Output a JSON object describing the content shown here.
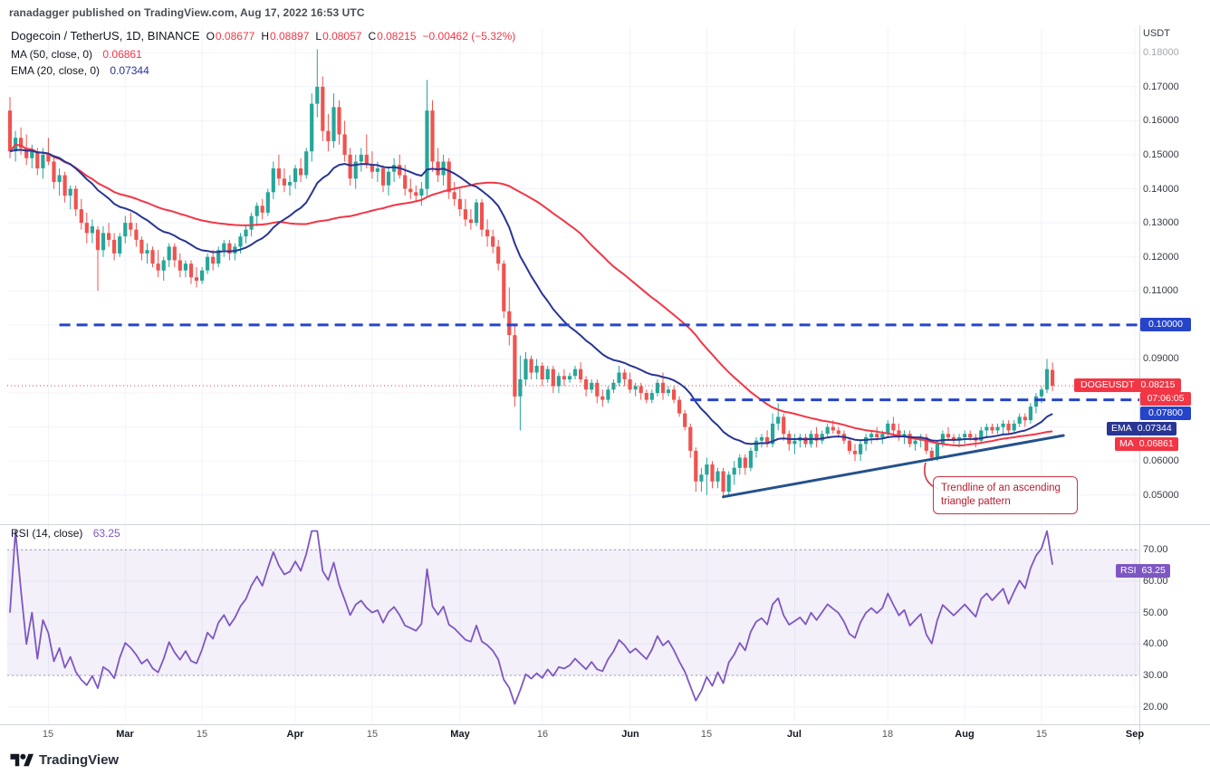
{
  "attribution": "ranadagger published on TradingView.com, Aug 17, 2022 16:53 UTC",
  "header": {
    "symbol_title": "Dogecoin / TetherUS, 1D, BINANCE",
    "ohlc": [
      {
        "label": "O",
        "value": "0.08677"
      },
      {
        "label": "H",
        "value": "0.08897"
      },
      {
        "label": "L",
        "value": "0.08057"
      },
      {
        "label": "C",
        "value": "0.08215"
      }
    ],
    "change": "−0.00462 (−5.32%)",
    "ma_legend": {
      "label": "MA (50, close, 0)",
      "value": "0.06861"
    },
    "ema_legend": {
      "label": "EMA (20, close, 0)",
      "value": "0.07344"
    }
  },
  "rsi_legend": {
    "label": "RSI (14, close)",
    "value": "63.25"
  },
  "price_axis": {
    "unit": "USDT",
    "labels": [
      {
        "text": "0.18000",
        "price": 0.18,
        "faded": true
      },
      {
        "text": "0.17000",
        "price": 0.17
      },
      {
        "text": "0.16000",
        "price": 0.16
      },
      {
        "text": "0.15000",
        "price": 0.15
      },
      {
        "text": "0.14000",
        "price": 0.14
      },
      {
        "text": "0.13000",
        "price": 0.13
      },
      {
        "text": "0.12000",
        "price": 0.12
      },
      {
        "text": "0.11000",
        "price": 0.11
      },
      {
        "text": "0.09000",
        "price": 0.09
      },
      {
        "text": "0.06000",
        "price": 0.06
      },
      {
        "text": "0.05000",
        "price": 0.05
      }
    ]
  },
  "rsi_axis": {
    "labels": [
      {
        "text": "70.00",
        "value": 70
      },
      {
        "text": "60.00",
        "value": 60
      },
      {
        "text": "50.00",
        "value": 50
      },
      {
        "text": "40.00",
        "value": 40
      },
      {
        "text": "30.00",
        "value": 30
      },
      {
        "text": "20.00",
        "value": 20
      }
    ]
  },
  "time_axis": {
    "ticks": [
      {
        "label": "15",
        "day": 7,
        "month": false
      },
      {
        "label": "Mar",
        "day": 21,
        "month": true
      },
      {
        "label": "15",
        "day": 35,
        "month": false
      },
      {
        "label": "Apr",
        "day": 52,
        "month": true
      },
      {
        "label": "15",
        "day": 66,
        "month": false
      },
      {
        "label": "May",
        "day": 82,
        "month": true
      },
      {
        "label": "16",
        "day": 97,
        "month": false
      },
      {
        "label": "Jun",
        "day": 113,
        "month": true
      },
      {
        "label": "15",
        "day": 127,
        "month": false
      },
      {
        "label": "Jul",
        "day": 143,
        "month": true
      },
      {
        "label": "18",
        "day": 160,
        "month": false
      },
      {
        "label": "Aug",
        "day": 174,
        "month": true
      },
      {
        "label": "15",
        "day": 188,
        "month": false
      },
      {
        "label": "Sep",
        "day": 205,
        "month": true
      }
    ]
  },
  "badges": {
    "level_10": {
      "text": "0.10000"
    },
    "symbol_price": {
      "symbol": "DOGEUSDT",
      "price": "0.08215"
    },
    "countdown": "07:06:05",
    "level_78": {
      "text": "0.07800"
    },
    "ema": {
      "label": "EMA",
      "value": "0.07344"
    },
    "ma": {
      "label": "MA",
      "value": "0.06861"
    },
    "rsi": {
      "label": "RSI",
      "value": "63.25"
    }
  },
  "annotation": {
    "text": "Trendline of an ascending triangle pattern"
  },
  "footer": {
    "brand": "TradingView"
  },
  "colors": {
    "up": "#26a69a",
    "down": "#ef5350",
    "ma": "#f23645",
    "ema": "#283593",
    "rsi": "#7e57c2",
    "level_blue": "#2644c9",
    "trend": "#24518c",
    "annotation_red": "#cc3344",
    "grid": "#f0f3fa",
    "separator": "#d1d4dc"
  },
  "chart_data": {
    "type": "candlestick",
    "symbol": "DOGEUSDT",
    "exchange": "BINANCE",
    "timeframe": "1D",
    "start_date": "2022-02-08",
    "end_date": "2022-08-17",
    "title": "Dogecoin / TetherUS, 1D, BINANCE",
    "price_axis_range": [
      0.0425,
      0.1875
    ],
    "rsi_axis_range": [
      15,
      77
    ],
    "total_day_slots": 206,
    "last_ohlc": {
      "open": 0.08677,
      "high": 0.08897,
      "low": 0.08057,
      "close": 0.08215,
      "change": -0.00462,
      "change_pct": -5.32
    },
    "indicators": [
      {
        "type": "sma",
        "period": 50,
        "source": "close",
        "last_value": 0.06861
      },
      {
        "type": "ema",
        "period": 20,
        "source": "close",
        "last_value": 0.07344
      },
      {
        "type": "rsi",
        "period": 14,
        "source": "close",
        "last_value": 63.25,
        "band": [
          30,
          70
        ]
      }
    ],
    "drawings": {
      "horizontal_levels": [
        {
          "price": 0.1,
          "label": "0.10000",
          "from_day": 9,
          "style": "dashed"
        },
        {
          "price": 0.078,
          "label": "0.07800",
          "from_day": 124,
          "style": "dashed"
        }
      ],
      "trendline": {
        "from_day": 130,
        "from_price": 0.0495,
        "to_day": 192,
        "to_price": 0.0675
      },
      "last_price_line": 0.08215
    },
    "candles": [
      [
        0.163,
        0.167,
        0.149,
        0.151
      ],
      [
        0.151,
        0.157,
        0.148,
        0.155
      ],
      [
        0.155,
        0.158,
        0.15,
        0.152
      ],
      [
        0.152,
        0.156,
        0.147,
        0.149
      ],
      [
        0.149,
        0.153,
        0.146,
        0.151
      ],
      [
        0.151,
        0.152,
        0.144,
        0.146
      ],
      [
        0.146,
        0.152,
        0.143,
        0.15
      ],
      [
        0.15,
        0.155,
        0.147,
        0.148
      ],
      [
        0.148,
        0.149,
        0.14,
        0.142
      ],
      [
        0.142,
        0.146,
        0.138,
        0.144
      ],
      [
        0.144,
        0.145,
        0.136,
        0.138
      ],
      [
        0.138,
        0.141,
        0.134,
        0.14
      ],
      [
        0.14,
        0.141,
        0.132,
        0.134
      ],
      [
        0.134,
        0.137,
        0.128,
        0.13
      ],
      [
        0.13,
        0.133,
        0.124,
        0.127
      ],
      [
        0.127,
        0.131,
        0.124,
        0.129
      ],
      [
        0.128,
        0.129,
        0.11,
        0.122
      ],
      [
        0.122,
        0.129,
        0.12,
        0.127
      ],
      [
        0.127,
        0.13,
        0.123,
        0.125
      ],
      [
        0.125,
        0.127,
        0.119,
        0.121
      ],
      [
        0.121,
        0.127,
        0.12,
        0.126
      ],
      [
        0.126,
        0.132,
        0.124,
        0.13
      ],
      [
        0.13,
        0.133,
        0.126,
        0.128
      ],
      [
        0.128,
        0.13,
        0.123,
        0.125
      ],
      [
        0.125,
        0.126,
        0.119,
        0.121
      ],
      [
        0.121,
        0.124,
        0.118,
        0.122
      ],
      [
        0.122,
        0.123,
        0.117,
        0.118
      ],
      [
        0.118,
        0.122,
        0.114,
        0.116
      ],
      [
        0.116,
        0.12,
        0.113,
        0.119
      ],
      [
        0.119,
        0.124,
        0.117,
        0.123
      ],
      [
        0.123,
        0.124,
        0.117,
        0.119
      ],
      [
        0.119,
        0.121,
        0.114,
        0.116
      ],
      [
        0.116,
        0.119,
        0.114,
        0.118
      ],
      [
        0.118,
        0.119,
        0.112,
        0.114
      ],
      [
        0.114,
        0.117,
        0.111,
        0.113
      ],
      [
        0.113,
        0.117,
        0.112,
        0.116
      ],
      [
        0.116,
        0.121,
        0.115,
        0.12
      ],
      [
        0.12,
        0.122,
        0.116,
        0.118
      ],
      [
        0.118,
        0.123,
        0.117,
        0.122
      ],
      [
        0.122,
        0.125,
        0.12,
        0.124
      ],
      [
        0.124,
        0.125,
        0.119,
        0.121
      ],
      [
        0.121,
        0.124,
        0.119,
        0.123
      ],
      [
        0.123,
        0.127,
        0.121,
        0.126
      ],
      [
        0.126,
        0.129,
        0.124,
        0.128
      ],
      [
        0.128,
        0.133,
        0.126,
        0.132
      ],
      [
        0.132,
        0.136,
        0.129,
        0.135
      ],
      [
        0.135,
        0.137,
        0.131,
        0.133
      ],
      [
        0.133,
        0.14,
        0.132,
        0.139
      ],
      [
        0.139,
        0.148,
        0.137,
        0.146
      ],
      [
        0.146,
        0.15,
        0.141,
        0.143
      ],
      [
        0.143,
        0.146,
        0.139,
        0.141
      ],
      [
        0.141,
        0.144,
        0.138,
        0.142
      ],
      [
        0.142,
        0.147,
        0.14,
        0.146
      ],
      [
        0.146,
        0.149,
        0.142,
        0.144
      ],
      [
        0.144,
        0.152,
        0.143,
        0.151
      ],
      [
        0.151,
        0.168,
        0.148,
        0.165
      ],
      [
        0.165,
        0.181,
        0.161,
        0.17
      ],
      [
        0.17,
        0.173,
        0.154,
        0.157
      ],
      [
        0.157,
        0.162,
        0.151,
        0.154
      ],
      [
        0.154,
        0.168,
        0.152,
        0.164
      ],
      [
        0.164,
        0.166,
        0.153,
        0.156
      ],
      [
        0.156,
        0.16,
        0.148,
        0.15
      ],
      [
        0.15,
        0.152,
        0.141,
        0.143
      ],
      [
        0.143,
        0.15,
        0.14,
        0.148
      ],
      [
        0.148,
        0.152,
        0.145,
        0.15
      ],
      [
        0.15,
        0.156,
        0.146,
        0.147
      ],
      [
        0.147,
        0.151,
        0.143,
        0.145
      ],
      [
        0.145,
        0.148,
        0.142,
        0.146
      ],
      [
        0.146,
        0.147,
        0.139,
        0.141
      ],
      [
        0.141,
        0.146,
        0.138,
        0.145
      ],
      [
        0.145,
        0.149,
        0.142,
        0.147
      ],
      [
        0.147,
        0.15,
        0.143,
        0.144
      ],
      [
        0.144,
        0.147,
        0.138,
        0.14
      ],
      [
        0.14,
        0.143,
        0.137,
        0.139
      ],
      [
        0.139,
        0.141,
        0.136,
        0.138
      ],
      [
        0.138,
        0.142,
        0.135,
        0.14
      ],
      [
        0.14,
        0.172,
        0.138,
        0.163
      ],
      [
        0.163,
        0.166,
        0.145,
        0.148
      ],
      [
        0.148,
        0.152,
        0.142,
        0.144
      ],
      [
        0.144,
        0.15,
        0.141,
        0.148
      ],
      [
        0.148,
        0.149,
        0.137,
        0.139
      ],
      [
        0.139,
        0.142,
        0.135,
        0.137
      ],
      [
        0.137,
        0.14,
        0.132,
        0.134
      ],
      [
        0.134,
        0.137,
        0.129,
        0.131
      ],
      [
        0.131,
        0.134,
        0.128,
        0.13
      ],
      [
        0.13,
        0.137,
        0.129,
        0.136
      ],
      [
        0.136,
        0.137,
        0.126,
        0.128
      ],
      [
        0.128,
        0.131,
        0.123,
        0.126
      ],
      [
        0.126,
        0.128,
        0.121,
        0.123
      ],
      [
        0.123,
        0.125,
        0.116,
        0.118
      ],
      [
        0.118,
        0.119,
        0.102,
        0.104
      ],
      [
        0.104,
        0.111,
        0.094,
        0.097
      ],
      [
        0.097,
        0.1,
        0.076,
        0.079
      ],
      [
        0.079,
        0.091,
        0.069,
        0.084
      ],
      [
        0.084,
        0.092,
        0.082,
        0.09
      ],
      [
        0.09,
        0.091,
        0.084,
        0.086
      ],
      [
        0.086,
        0.09,
        0.084,
        0.088
      ],
      [
        0.088,
        0.089,
        0.082,
        0.084
      ],
      [
        0.084,
        0.088,
        0.083,
        0.087
      ],
      [
        0.087,
        0.088,
        0.08,
        0.082
      ],
      [
        0.082,
        0.086,
        0.08,
        0.085
      ],
      [
        0.085,
        0.087,
        0.082,
        0.084
      ],
      [
        0.084,
        0.086,
        0.083,
        0.085
      ],
      [
        0.085,
        0.088,
        0.084,
        0.087
      ],
      [
        0.087,
        0.089,
        0.083,
        0.084
      ],
      [
        0.084,
        0.085,
        0.079,
        0.081
      ],
      [
        0.081,
        0.084,
        0.08,
        0.083
      ],
      [
        0.083,
        0.084,
        0.077,
        0.079
      ],
      [
        0.079,
        0.081,
        0.076,
        0.078
      ],
      [
        0.078,
        0.082,
        0.077,
        0.081
      ],
      [
        0.081,
        0.084,
        0.08,
        0.083
      ],
      [
        0.083,
        0.088,
        0.082,
        0.086
      ],
      [
        0.086,
        0.087,
        0.082,
        0.084
      ],
      [
        0.084,
        0.086,
        0.08,
        0.081
      ],
      [
        0.081,
        0.083,
        0.079,
        0.082
      ],
      [
        0.082,
        0.083,
        0.078,
        0.08
      ],
      [
        0.08,
        0.081,
        0.077,
        0.078
      ],
      [
        0.078,
        0.081,
        0.077,
        0.08
      ],
      [
        0.08,
        0.084,
        0.079,
        0.083
      ],
      [
        0.083,
        0.086,
        0.078,
        0.08
      ],
      [
        0.08,
        0.082,
        0.079,
        0.081
      ],
      [
        0.081,
        0.082,
        0.077,
        0.078
      ],
      [
        0.078,
        0.079,
        0.073,
        0.074
      ],
      [
        0.074,
        0.075,
        0.069,
        0.07
      ],
      [
        0.07,
        0.071,
        0.061,
        0.063
      ],
      [
        0.063,
        0.064,
        0.051,
        0.054
      ],
      [
        0.054,
        0.058,
        0.051,
        0.056
      ],
      [
        0.056,
        0.061,
        0.05,
        0.059
      ],
      [
        0.059,
        0.06,
        0.052,
        0.054
      ],
      [
        0.054,
        0.058,
        0.052,
        0.057
      ],
      [
        0.057,
        0.058,
        0.049,
        0.051
      ],
      [
        0.051,
        0.057,
        0.05,
        0.056
      ],
      [
        0.056,
        0.06,
        0.053,
        0.058
      ],
      [
        0.058,
        0.062,
        0.056,
        0.061
      ],
      [
        0.061,
        0.062,
        0.056,
        0.058
      ],
      [
        0.058,
        0.064,
        0.057,
        0.063
      ],
      [
        0.063,
        0.067,
        0.061,
        0.066
      ],
      [
        0.066,
        0.068,
        0.064,
        0.067
      ],
      [
        0.067,
        0.069,
        0.064,
        0.065
      ],
      [
        0.065,
        0.074,
        0.064,
        0.071
      ],
      [
        0.071,
        0.077,
        0.069,
        0.073
      ],
      [
        0.073,
        0.074,
        0.066,
        0.068
      ],
      [
        0.068,
        0.069,
        0.063,
        0.065
      ],
      [
        0.065,
        0.068,
        0.062,
        0.066
      ],
      [
        0.066,
        0.068,
        0.064,
        0.067
      ],
      [
        0.067,
        0.068,
        0.064,
        0.065
      ],
      [
        0.065,
        0.069,
        0.064,
        0.068
      ],
      [
        0.068,
        0.07,
        0.064,
        0.066
      ],
      [
        0.066,
        0.069,
        0.065,
        0.068
      ],
      [
        0.068,
        0.071,
        0.067,
        0.07
      ],
      [
        0.07,
        0.072,
        0.068,
        0.069
      ],
      [
        0.069,
        0.07,
        0.067,
        0.068
      ],
      [
        0.068,
        0.069,
        0.065,
        0.066
      ],
      [
        0.066,
        0.067,
        0.062,
        0.063
      ],
      [
        0.063,
        0.065,
        0.06,
        0.062
      ],
      [
        0.062,
        0.066,
        0.06,
        0.065
      ],
      [
        0.065,
        0.068,
        0.063,
        0.067
      ],
      [
        0.067,
        0.069,
        0.065,
        0.068
      ],
      [
        0.068,
        0.07,
        0.066,
        0.067
      ],
      [
        0.067,
        0.069,
        0.065,
        0.068
      ],
      [
        0.068,
        0.072,
        0.067,
        0.071
      ],
      [
        0.071,
        0.073,
        0.068,
        0.069
      ],
      [
        0.069,
        0.071,
        0.066,
        0.067
      ],
      [
        0.067,
        0.069,
        0.065,
        0.068
      ],
      [
        0.068,
        0.069,
        0.064,
        0.065
      ],
      [
        0.065,
        0.067,
        0.063,
        0.066
      ],
      [
        0.066,
        0.068,
        0.064,
        0.067
      ],
      [
        0.067,
        0.068,
        0.062,
        0.063
      ],
      [
        0.063,
        0.064,
        0.06,
        0.061
      ],
      [
        0.061,
        0.066,
        0.06,
        0.065
      ],
      [
        0.065,
        0.069,
        0.064,
        0.068
      ],
      [
        0.068,
        0.07,
        0.066,
        0.067
      ],
      [
        0.067,
        0.068,
        0.065,
        0.066
      ],
      [
        0.066,
        0.068,
        0.064,
        0.067
      ],
      [
        0.067,
        0.069,
        0.065,
        0.068
      ],
      [
        0.068,
        0.069,
        0.066,
        0.067
      ],
      [
        0.067,
        0.068,
        0.064,
        0.066
      ],
      [
        0.066,
        0.07,
        0.065,
        0.069
      ],
      [
        0.069,
        0.071,
        0.067,
        0.07
      ],
      [
        0.07,
        0.071,
        0.068,
        0.069
      ],
      [
        0.069,
        0.071,
        0.068,
        0.07
      ],
      [
        0.07,
        0.072,
        0.068,
        0.071
      ],
      [
        0.071,
        0.072,
        0.068,
        0.069
      ],
      [
        0.069,
        0.072,
        0.068,
        0.071
      ],
      [
        0.071,
        0.074,
        0.07,
        0.073
      ],
      [
        0.073,
        0.074,
        0.07,
        0.072
      ],
      [
        0.072,
        0.077,
        0.071,
        0.076
      ],
      [
        0.076,
        0.08,
        0.074,
        0.079
      ],
      [
        0.079,
        0.082,
        0.077,
        0.081
      ],
      [
        0.081,
        0.09,
        0.08,
        0.087
      ],
      [
        0.08677,
        0.08897,
        0.08057,
        0.08215
      ]
    ]
  }
}
